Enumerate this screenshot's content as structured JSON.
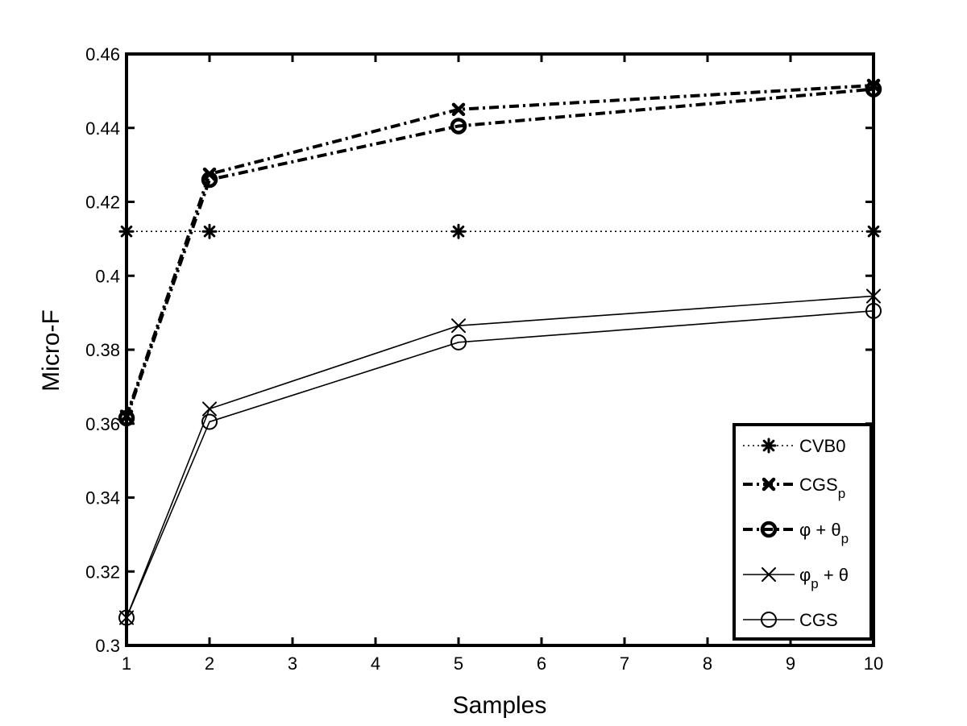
{
  "chart_data": {
    "type": "line",
    "title": "",
    "xlabel": "Samples",
    "ylabel": "Micro-F",
    "xlim": [
      1,
      10
    ],
    "ylim": [
      0.3,
      0.46
    ],
    "x_ticks": [
      1,
      2,
      3,
      4,
      5,
      6,
      7,
      8,
      9,
      10
    ],
    "x_tick_labels": [
      "1",
      "2",
      "3",
      "4",
      "5",
      "6",
      "7",
      "8",
      "9",
      "10"
    ],
    "y_ticks": [
      0.3,
      0.32,
      0.34,
      0.36,
      0.38,
      0.4,
      0.42,
      0.44,
      0.46
    ],
    "y_tick_labels": [
      "0.3",
      "0.32",
      "0.34",
      "0.36",
      "0.38",
      "0.4",
      "0.42",
      "0.44",
      "0.46"
    ],
    "grid": false,
    "legend_position": "bottom-right",
    "series": [
      {
        "key": "cvb0",
        "name": "CVB0",
        "legend_main": "CVB0",
        "legend_sub": "",
        "legend_tail": "",
        "x": [
          1,
          2,
          5,
          10
        ],
        "values": [
          0.412,
          0.412,
          0.412,
          0.412
        ],
        "line_style": "dotted",
        "marker": "asterisk",
        "weight": "thin"
      },
      {
        "key": "cgsp",
        "name": "CGS_p",
        "legend_main": "CGS",
        "legend_sub": "p",
        "legend_tail": "",
        "x": [
          1,
          2,
          5,
          10
        ],
        "values": [
          0.362,
          0.4275,
          0.445,
          0.4515
        ],
        "line_style": "dashdot",
        "marker": "x",
        "weight": "bold"
      },
      {
        "key": "phitheta_p",
        "name": "φ + θ_p",
        "legend_main": "φ + θ",
        "legend_sub": "p",
        "legend_tail": "",
        "x": [
          1,
          2,
          5,
          10
        ],
        "values": [
          0.3615,
          0.426,
          0.4405,
          0.4505
        ],
        "line_style": "dashdot",
        "marker": "circle",
        "weight": "bold"
      },
      {
        "key": "phi_p_theta",
        "name": "φ_p + θ",
        "legend_main": "φ",
        "legend_sub": "p",
        "legend_tail": " + θ",
        "x": [
          1,
          2,
          5,
          10
        ],
        "values": [
          0.3075,
          0.364,
          0.3865,
          0.3945
        ],
        "line_style": "solid",
        "marker": "x",
        "weight": "thin"
      },
      {
        "key": "cgs",
        "name": "CGS",
        "legend_main": "CGS",
        "legend_sub": "",
        "legend_tail": "",
        "x": [
          1,
          2,
          5,
          10
        ],
        "values": [
          0.3075,
          0.3605,
          0.382,
          0.3905
        ],
        "line_style": "solid",
        "marker": "circle",
        "weight": "thin"
      }
    ]
  }
}
